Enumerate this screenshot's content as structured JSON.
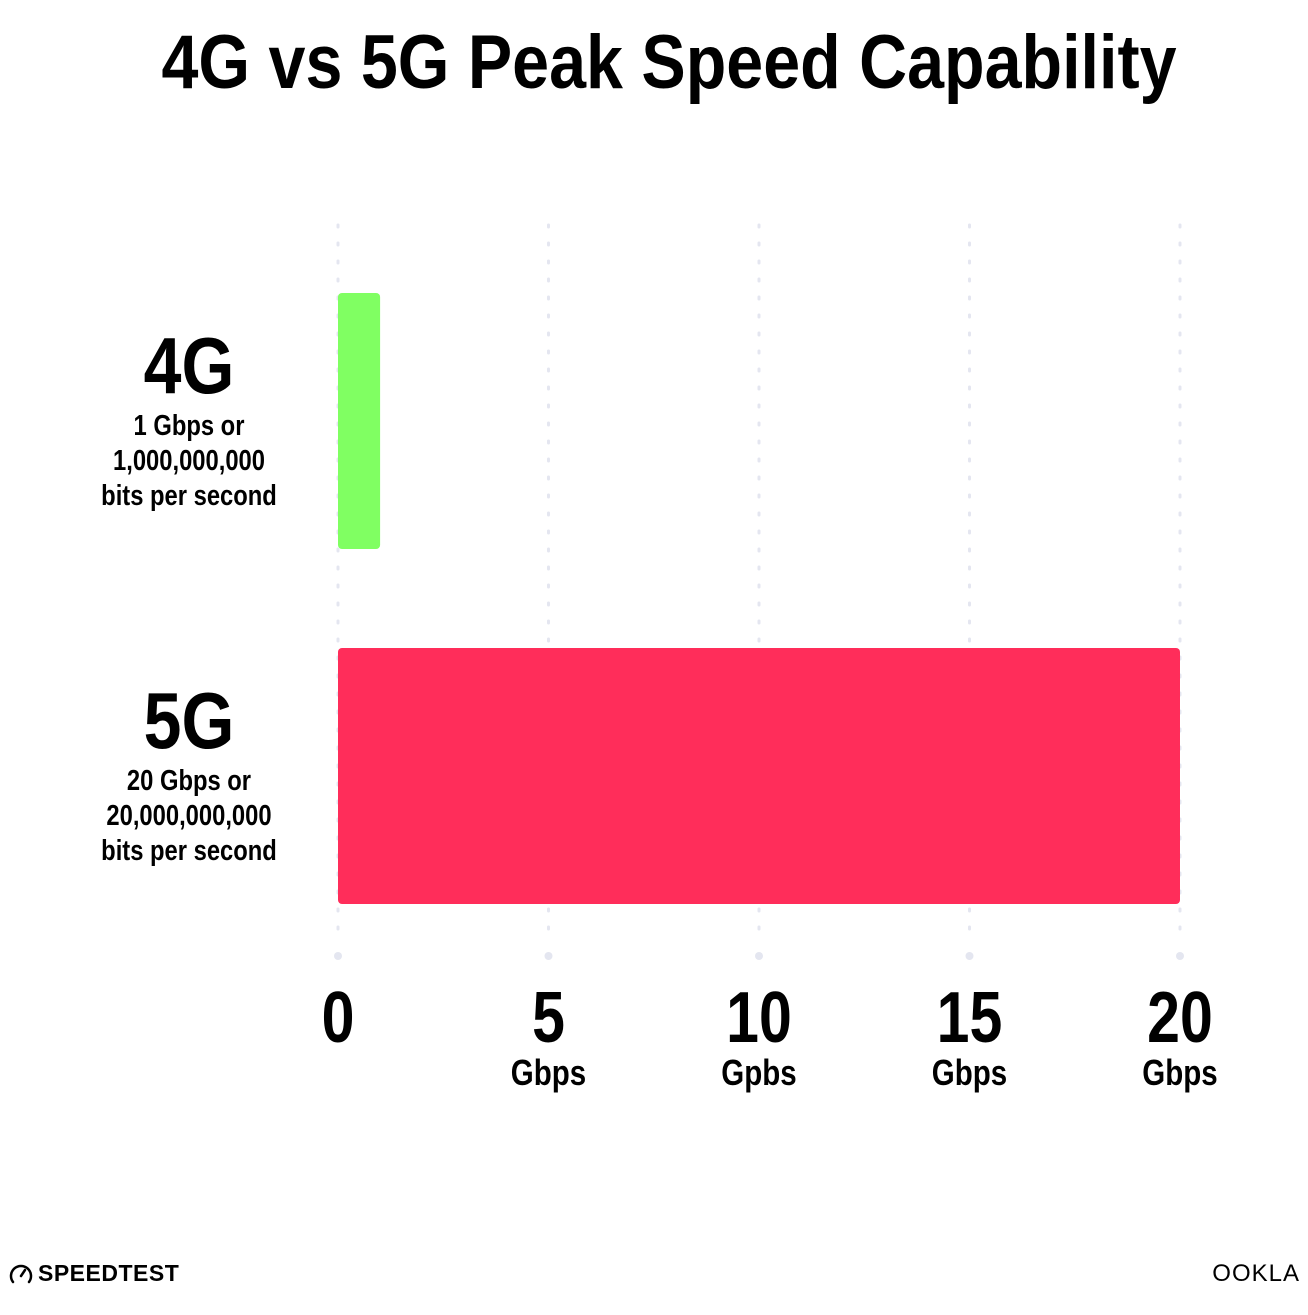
{
  "chart_data": {
    "type": "bar",
    "orientation": "horizontal",
    "title": "4G vs 5G Peak Speed Capability",
    "categories": [
      "4G",
      "5G"
    ],
    "category_sublabels": [
      [
        "1 Gbps or",
        "1,000,000,000",
        "bits per second"
      ],
      [
        "20 Gbps or",
        "20,000,000,000",
        "bits per second"
      ]
    ],
    "values": [
      1,
      20
    ],
    "colors": [
      "#80ff62",
      "#ff2d5a"
    ],
    "xlim": [
      0,
      20
    ],
    "x_ticks": [
      {
        "value": 0,
        "label": "0",
        "unit": ""
      },
      {
        "value": 5,
        "label": "5",
        "unit": "Gbps"
      },
      {
        "value": 10,
        "label": "10",
        "unit": "Gpbs"
      },
      {
        "value": 15,
        "label": "15",
        "unit": "Gbps"
      },
      {
        "value": 20,
        "label": "20",
        "unit": "Gbps"
      }
    ],
    "grid": "vertical dotted",
    "gridColor": "#e4e6f0"
  },
  "branding": {
    "left": "SPEEDTEST",
    "right": "OOKLA"
  }
}
